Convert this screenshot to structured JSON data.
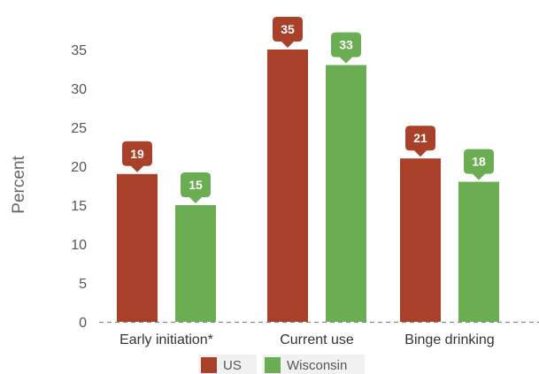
{
  "chart_data": {
    "type": "bar",
    "title": "",
    "xlabel": "",
    "ylabel": "Percent",
    "categories": [
      "Early initiation*",
      "Current use",
      "Binge drinking"
    ],
    "series": [
      {
        "name": "US",
        "values": [
          19,
          35,
          21
        ],
        "color": "#a8402a"
      },
      {
        "name": "Wisconsin",
        "values": [
          15,
          33,
          18
        ],
        "color": "#6aad52"
      }
    ],
    "ylim": [
      0,
      35
    ],
    "yticks": [
      0,
      5,
      10,
      15,
      20,
      25,
      30,
      35
    ],
    "grid": false,
    "baseline_style": "dashed",
    "data_labels": true,
    "legend_position": "bottom-center"
  }
}
